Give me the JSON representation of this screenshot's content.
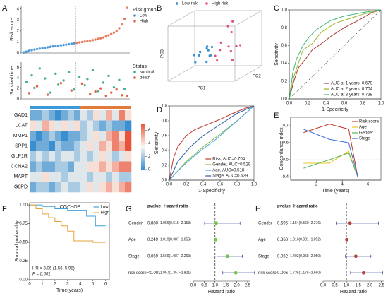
{
  "chart_data": [
    {
      "type": "scatter",
      "panel": "A",
      "ylabel": "Risk score",
      "xlim": [
        0,
        41
      ],
      "ylim": [
        0,
        4.3
      ],
      "yticks": [
        0,
        1,
        2,
        3,
        4
      ],
      "cutoff": 20.5,
      "legend": "right",
      "legend_title": "Risk group",
      "series": [
        {
          "name": "Low",
          "color": "#3a8fd6",
          "x": [
            1,
            2,
            3,
            4,
            5,
            6,
            7,
            8,
            9,
            10,
            11,
            12,
            13,
            14,
            15,
            16,
            17,
            18,
            19,
            20
          ],
          "values": [
            0.05,
            0.12,
            0.2,
            0.26,
            0.31,
            0.36,
            0.4,
            0.44,
            0.48,
            0.52,
            0.56,
            0.6,
            0.63,
            0.66,
            0.7,
            0.73,
            0.76,
            0.8,
            0.84,
            0.88
          ]
        },
        {
          "name": "High",
          "color": "#e06f4c",
          "x": [
            21,
            22,
            23,
            24,
            25,
            26,
            27,
            28,
            29,
            30,
            31,
            32,
            33,
            34,
            35,
            36,
            37,
            38,
            39,
            40
          ],
          "values": [
            0.92,
            0.96,
            1.0,
            1.04,
            1.08,
            1.12,
            1.17,
            1.22,
            1.28,
            1.34,
            1.4,
            1.5,
            1.6,
            1.72,
            1.85,
            2.0,
            2.25,
            2.6,
            3.1,
            4.1
          ]
        }
      ]
    },
    {
      "type": "scatter",
      "ylabel": "Survival time",
      "xlim": [
        0,
        41
      ],
      "ylim": [
        0,
        7
      ],
      "yticks": [
        0,
        2,
        4,
        6
      ],
      "cutoff": 20.5,
      "legend": "right",
      "legend_title": "Status",
      "series": [
        {
          "name": "survival",
          "color": "#3aa88f",
          "x": [
            2,
            4,
            5,
            7,
            9,
            11,
            13,
            14,
            16,
            18,
            20,
            22,
            24,
            25,
            27,
            29,
            31,
            33,
            35,
            37,
            39
          ],
          "values": [
            3.2,
            4.5,
            2.1,
            5.8,
            3.9,
            1.2,
            4.8,
            2.7,
            3.5,
            5.1,
            1.8,
            4.2,
            2.6,
            3.8,
            5.5,
            1.5,
            3.1,
            4.4,
            2.2,
            3.6,
            1.9
          ]
        },
        {
          "name": "death",
          "color": "#e0533a",
          "x": [
            3,
            6,
            10,
            15,
            19,
            23,
            26,
            28,
            30,
            32,
            34,
            36,
            38,
            40
          ],
          "values": [
            1.1,
            2.4,
            0.8,
            3.0,
            1.6,
            2.9,
            0.9,
            1.4,
            2.0,
            0.6,
            1.2,
            1.8,
            0.7,
            0.5
          ]
        }
      ]
    },
    {
      "type": "heatmap",
      "categories": [
        "GAD1",
        "LCAT",
        "MMP1",
        "SPP1",
        "GLP1R",
        "CCNA2",
        "MAPT",
        "G6PD"
      ],
      "clim": [
        0,
        7
      ],
      "cticks": [
        0,
        2,
        4,
        6
      ],
      "colors": [
        "#3a8fd0",
        "#fbf6f0",
        "#e8533a"
      ],
      "values": [
        [
          1,
          1,
          2,
          1,
          0,
          1,
          2,
          1,
          3,
          2,
          4,
          3,
          5,
          3,
          6,
          4
        ],
        [
          4,
          3,
          5,
          4,
          3,
          4,
          3,
          4,
          2,
          3,
          2,
          1,
          2,
          1,
          1,
          0
        ],
        [
          1,
          0,
          1,
          2,
          1,
          0,
          1,
          1,
          2,
          3,
          4,
          3,
          5,
          6,
          4,
          7
        ],
        [
          0,
          1,
          1,
          0,
          2,
          1,
          1,
          2,
          3,
          4,
          3,
          5,
          4,
          6,
          5,
          7
        ],
        [
          2,
          3,
          2,
          3,
          2,
          3,
          3,
          2,
          3,
          2,
          3,
          4,
          3,
          2,
          3,
          4
        ],
        [
          1,
          2,
          1,
          1,
          2,
          2,
          1,
          3,
          3,
          4,
          4,
          5,
          4,
          5,
          6,
          6
        ],
        [
          3,
          3,
          4,
          3,
          3,
          2,
          3,
          3,
          3,
          2,
          3,
          3,
          2,
          3,
          2,
          2
        ],
        [
          1,
          2,
          2,
          1,
          2,
          3,
          2,
          2,
          3,
          4,
          3,
          4,
          5,
          4,
          5,
          6
        ]
      ]
    },
    {
      "type": "scatter3d",
      "panel": "B",
      "xlabel": "PC1",
      "ylabel": "PC2",
      "zlabel": "PC3",
      "xlim": [
        -4,
        4
      ],
      "ylim": [
        -3,
        3
      ],
      "zlim": [
        -2,
        4
      ],
      "legend": "top",
      "series": [
        {
          "name": "Low risk",
          "color": "#3a8fd6",
          "x": [
            -2,
            -1.5,
            -1,
            -2.5,
            -0.5,
            -1.8,
            -1.2,
            -0.8,
            -2.2,
            -1.6,
            -0.3,
            -1.1
          ],
          "y": [
            0.5,
            -0.5,
            1,
            0,
            0.3,
            -1,
            0.8,
            -0.2,
            0.6,
            1.2,
            -0.6,
            0.2
          ],
          "z": [
            0.2,
            0.5,
            -0.3,
            0,
            0.8,
            -0.5,
            0.3,
            1,
            -0.2,
            0.4,
            0.1,
            -0.8
          ]
        },
        {
          "name": "High risk",
          "color": "#e0507a",
          "x": [
            0.5,
            1,
            1.5,
            2,
            0.8,
            1.3,
            2.5,
            0.2,
            1.8,
            3,
            1,
            2.2
          ],
          "y": [
            0.2,
            -0.5,
            0.8,
            0,
            -1,
            0.5,
            1,
            -0.3,
            0.6,
            -0.8,
            1.2,
            -0.2
          ],
          "z": [
            0.5,
            1.5,
            0.2,
            2.5,
            -0.3,
            3,
            0.8,
            0,
            3.5,
            1.2,
            0.6,
            -0.5
          ]
        }
      ]
    },
    {
      "type": "line",
      "panel": "C",
      "xlabel": "1-Specificity",
      "ylabel": "Sensitivity",
      "xlim": [
        0,
        1
      ],
      "ylim": [
        0,
        1
      ],
      "xticks": [
        {
          "value": 0,
          "label": "0.0"
        },
        {
          "value": 0.2,
          "label": "0.2"
        },
        {
          "value": 0.4,
          "label": "0.4"
        },
        {
          "value": 0.6,
          "label": "0.6"
        },
        {
          "value": 0.8,
          "label": "0.8"
        },
        {
          "value": 1,
          "label": "1.0"
        }
      ],
      "yticks": [
        {
          "value": 0,
          "label": "0.0"
        },
        {
          "value": 0.2,
          "label": "0.2"
        },
        {
          "value": 0.4,
          "label": "0.4"
        },
        {
          "value": 0.6,
          "label": "0.6"
        },
        {
          "value": 0.8,
          "label": "0.8"
        },
        {
          "value": 1,
          "label": "1.0"
        }
      ],
      "diagonal": true,
      "legend": "lower right",
      "series": [
        {
          "name": "AUC at 1 years: 0.679",
          "color": "#a83a32",
          "x": [
            0,
            0.05,
            0.1,
            0.18,
            0.25,
            0.35,
            0.45,
            0.6,
            0.75,
            0.9,
            1
          ],
          "values": [
            0,
            0.2,
            0.35,
            0.45,
            0.55,
            0.62,
            0.7,
            0.8,
            0.88,
            0.97,
            1
          ]
        },
        {
          "name": "AUC at 2 years: 0.704",
          "color": "#9cb82e",
          "x": [
            0,
            0.05,
            0.1,
            0.15,
            0.25,
            0.35,
            0.5,
            0.65,
            0.8,
            1
          ],
          "values": [
            0,
            0.25,
            0.4,
            0.55,
            0.62,
            0.75,
            0.85,
            0.9,
            0.95,
            1
          ]
        },
        {
          "name": "AUC at 3 years: 0.738",
          "color": "#3cb371",
          "x": [
            0,
            0.04,
            0.08,
            0.15,
            0.22,
            0.3,
            0.45,
            0.6,
            0.8,
            1
          ],
          "values": [
            0,
            0.3,
            0.45,
            0.6,
            0.7,
            0.78,
            0.88,
            0.93,
            0.97,
            1
          ]
        }
      ]
    },
    {
      "type": "line",
      "panel": "D",
      "xlabel": "1-Specificity",
      "ylabel": "Sensitivity",
      "xlim": [
        0,
        1
      ],
      "ylim": [
        0,
        1
      ],
      "xticks": [
        {
          "value": 0,
          "label": "0.0"
        },
        {
          "value": 0.2,
          "label": "0.2"
        },
        {
          "value": 0.4,
          "label": "0.4"
        },
        {
          "value": 0.6,
          "label": "0.6"
        },
        {
          "value": 0.8,
          "label": "0.8"
        },
        {
          "value": 1,
          "label": "1.0"
        }
      ],
      "yticks": [
        {
          "value": 0,
          "label": "0.0"
        },
        {
          "value": 0.2,
          "label": "0.2"
        },
        {
          "value": 0.4,
          "label": "0.4"
        },
        {
          "value": 0.6,
          "label": "0.6"
        },
        {
          "value": 0.8,
          "label": "0.8"
        },
        {
          "value": 1,
          "label": "1.0"
        }
      ],
      "legend": "lower right",
      "series": [
        {
          "name": "Risk, AUC=0.704",
          "color": "#c0392b",
          "x": [
            0,
            0.05,
            0.1,
            0.2,
            0.3,
            0.45,
            0.6,
            0.75,
            0.9,
            1
          ],
          "values": [
            0,
            0.3,
            0.45,
            0.6,
            0.68,
            0.75,
            0.82,
            0.9,
            0.97,
            1
          ]
        },
        {
          "name": "Gender, AUC=0.529",
          "color": "#7cbb3f",
          "x": [
            0,
            0.2,
            0.4,
            0.6,
            0.8,
            1
          ],
          "values": [
            0,
            0.25,
            0.45,
            0.62,
            0.8,
            1
          ]
        },
        {
          "name": "Age, AUC=0.518",
          "color": "#4aa3df",
          "x": [
            0,
            0.15,
            0.35,
            0.55,
            0.75,
            1
          ],
          "values": [
            0,
            0.18,
            0.38,
            0.55,
            0.75,
            1
          ]
        },
        {
          "name": "Stage, AUC=0.629",
          "color": "#2c5aa0",
          "x": [
            0,
            0.1,
            0.25,
            0.4,
            0.6,
            0.8,
            1
          ],
          "values": [
            0,
            0.25,
            0.45,
            0.6,
            0.75,
            0.9,
            1
          ]
        }
      ]
    },
    {
      "type": "line",
      "panel": "E",
      "xlabel": "Time (years)",
      "ylabel": "Concordance index",
      "xlim": [
        0,
        7
      ],
      "ylim": [
        0.38,
        0.75
      ],
      "xticks": [
        2,
        4,
        6
      ],
      "yticks": [
        0.4,
        0.5,
        0.6,
        0.7
      ],
      "refline": 0.5,
      "legend": "upper right",
      "series": [
        {
          "name": "Risk score",
          "color": "#c0392b",
          "x": [
            1,
            3,
            4.5,
            5.2
          ],
          "values": [
            0.66,
            0.71,
            0.68,
            0.4
          ]
        },
        {
          "name": "Age",
          "color": "#e5c71a",
          "x": [
            1,
            3,
            4.5,
            5.2
          ],
          "values": [
            0.48,
            0.48,
            0.55,
            0.4
          ]
        },
        {
          "name": "Gender",
          "color": "#5cb85c",
          "x": [
            1,
            3,
            4.5,
            5.2
          ],
          "values": [
            0.45,
            0.5,
            0.54,
            0.4
          ]
        },
        {
          "name": "Stage",
          "color": "#3a6fd8",
          "x": [
            1,
            3,
            4.5,
            5.2
          ],
          "values": [
            0.68,
            0.62,
            0.6,
            0.4
          ]
        }
      ]
    },
    {
      "type": "line",
      "panel": "F",
      "title": "ICGC−OS",
      "xlabel": "Time(years)",
      "ylabel": "Survival probability",
      "xlim": [
        0,
        6.3
      ],
      "ylim": [
        0,
        1.03
      ],
      "xticks": [
        0,
        1,
        2,
        3,
        4,
        5,
        6
      ],
      "yticks": [
        {
          "value": 0,
          "label": "0.00"
        },
        {
          "value": 0.25,
          "label": "0.25"
        },
        {
          "value": 0.5,
          "label": "0.50"
        },
        {
          "value": 0.75,
          "label": "0.75"
        },
        {
          "value": 1,
          "label": "1.00"
        }
      ],
      "legend": "upper right",
      "annotations": [
        "HR = 3.06 (1.56−5.98)",
        "P = 0.001"
      ],
      "series": [
        {
          "name": "Low",
          "color": "#3fa0d8",
          "x": [
            0,
            1,
            1,
            2,
            2,
            3,
            3,
            4.5,
            4.5,
            5.2,
            5.2,
            6
          ],
          "values": [
            1,
            1,
            0.98,
            0.98,
            0.95,
            0.95,
            0.93,
            0.93,
            0.85,
            0.85,
            0.72,
            0.72
          ]
        },
        {
          "name": "High",
          "color": "#e8a23c",
          "x": [
            0,
            0.5,
            0.5,
            1,
            1,
            1.5,
            1.5,
            2,
            2,
            2.5,
            2.5,
            3,
            3,
            3.5,
            3.5,
            5,
            5,
            6
          ],
          "values": [
            1,
            1,
            0.95,
            0.95,
            0.88,
            0.88,
            0.83,
            0.83,
            0.78,
            0.78,
            0.72,
            0.72,
            0.65,
            0.65,
            0.52,
            0.52,
            0.5,
            0.5
          ]
        }
      ]
    },
    {
      "type": "forest",
      "panel": "G",
      "headers": [
        "pvalue",
        "Hazard ratio"
      ],
      "xlabel": "Hazard ratio",
      "xlim": [
        0,
        2.6
      ],
      "refline": 1,
      "color": "#6cc644",
      "line_color": "#1f2f8a",
      "xticks": [
        {
          "value": 0,
          "label": "0.0"
        },
        {
          "value": 0.5,
          "label": "0.5"
        },
        {
          "value": 1,
          "label": "1.0"
        },
        {
          "value": 1.5,
          "label": "1.5"
        },
        {
          "value": 2,
          "label": "2.0"
        },
        {
          "value": 2.5,
          "label": "2.5"
        }
      ],
      "categories": [
        "Gender",
        "Age",
        "Stage",
        "risk score"
      ],
      "pvalues": [
        "0.880",
        "0.249",
        "0.069",
        "<0.001"
      ],
      "values": [
        1.056,
        1.019,
        1.569,
        1.957
      ],
      "lo": [
        0.518,
        0.987,
        1.087,
        1.357
      ],
      "hi": [
        2.153,
        1.053,
        2.263,
        2.821
      ],
      "value_labels": [
        "1.056(0.518−2.153)",
        "1.019(0.987−1.053)",
        "1.569(1.087−2.263)",
        "1.957(1.357−2.821)"
      ]
    },
    {
      "type": "forest",
      "panel": "H",
      "headers": [
        "pvalue",
        "Hazard ratio"
      ],
      "xlabel": "Hazard ratio",
      "xlim": [
        0,
        2.6
      ],
      "refline": 1,
      "color": "#b5443a",
      "line_color": "#1f2f8a",
      "xticks": [
        {
          "value": 0,
          "label": "0.0"
        },
        {
          "value": 0.5,
          "label": "0.5"
        },
        {
          "value": 1,
          "label": "1.0"
        },
        {
          "value": 1.5,
          "label": "1.5"
        },
        {
          "value": 2,
          "label": "2.0"
        },
        {
          "value": 2.5,
          "label": "2.5"
        }
      ],
      "categories": [
        "Gender",
        "Age",
        "Stage",
        "risk score"
      ],
      "pvalues": [
        "0.696",
        "0.368",
        "0.062",
        "0.006"
      ],
      "values": [
        1.154,
        1.016,
        1.402,
        1.735
      ],
      "lo": [
        0.56,
        0.981,
        0.958,
        1.175
      ],
      "hi": [
        2.376,
        1.052,
        2.05,
        2.56
      ],
      "value_labels": [
        "1.154(0.560−2.376)",
        "1.016(0.981−1.052)",
        "1.402(0.958−2.050)",
        "1.735(1.175−2.560)"
      ]
    }
  ]
}
